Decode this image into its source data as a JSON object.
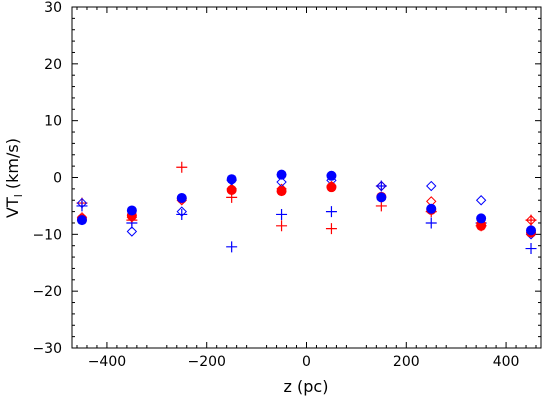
{
  "chart_data": {
    "type": "scatter",
    "title": "",
    "xlabel": "z (pc)",
    "ylabel_main": "VT",
    "ylabel_sub": "l",
    "ylabel_unit": " (km/s)",
    "xlim": [
      -470,
      470
    ],
    "ylim": [
      -30,
      30
    ],
    "x_ticks": [
      -400,
      -200,
      0,
      200,
      400
    ],
    "x_tick_labels": [
      "−400",
      "−200",
      "0",
      "200",
      "400"
    ],
    "y_ticks": [
      -30,
      -20,
      -10,
      0,
      10,
      20,
      30
    ],
    "y_tick_labels": [
      "−30",
      "−20",
      "−10",
      "0",
      "10",
      "20",
      "30"
    ],
    "x": [
      -450,
      -350,
      -250,
      -150,
      -50,
      50,
      150,
      250,
      350,
      450
    ],
    "series": [
      {
        "marker": "plus",
        "color": "#ff0000",
        "values": [
          -4.5,
          -7.5,
          1.8,
          -3.5,
          -8.5,
          -9.0,
          -5.0,
          -6.0,
          -8.5,
          -7.5
        ]
      },
      {
        "marker": "plus",
        "color": "#0000ff",
        "values": [
          -5.0,
          -8.0,
          -6.5,
          -12.2,
          -6.5,
          -6.0,
          -1.5,
          -8.0,
          -8.0,
          -12.5
        ]
      },
      {
        "marker": "diamond",
        "color": "#ff0000",
        "values": [
          -7.0,
          -7.0,
          -4.0,
          -2.0,
          -2.0,
          -1.5,
          -1.5,
          -4.2,
          -8.0,
          -7.5
        ]
      },
      {
        "marker": "diamond",
        "color": "#0000ff",
        "values": [
          -4.5,
          -9.5,
          -6.0,
          -0.5,
          -0.8,
          -0.5,
          -1.5,
          -1.5,
          -4.0,
          -10.0
        ]
      },
      {
        "marker": "circle",
        "color": "#ff0000",
        "values": [
          -7.3,
          -6.7,
          -3.7,
          -2.2,
          -2.4,
          -1.7,
          -3.4,
          -5.7,
          -8.5,
          -9.7
        ]
      },
      {
        "marker": "circle",
        "color": "#0000ff",
        "values": [
          -7.5,
          -5.8,
          -3.6,
          -0.3,
          0.5,
          0.3,
          -3.5,
          -5.5,
          -7.2,
          -9.3
        ]
      }
    ]
  }
}
